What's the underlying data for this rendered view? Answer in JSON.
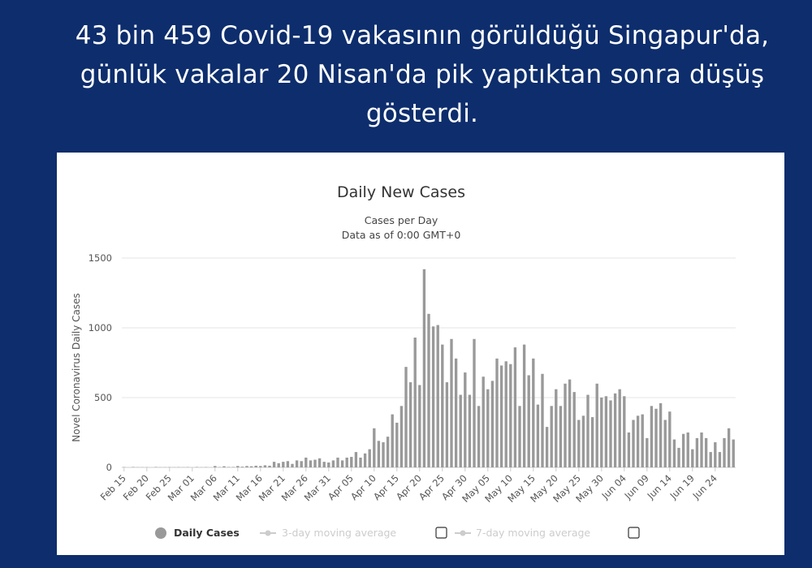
{
  "headline": {
    "line1": "43 bin 459 Covid-19 vakasının görüldüğü Singapur'da,",
    "line2": "günlük vakalar 20 Nisan'da pik yaptıktan sonra düşüş",
    "line3": "gösterdi."
  },
  "chart_data": {
    "type": "bar",
    "title": "Daily New Cases",
    "subtitle_1": "Cases per Day",
    "subtitle_2": "Data as of 0:00 GMT+0",
    "xlabel": "",
    "ylabel": "Novel Coronavirus Daily Cases",
    "ylim": [
      0,
      1500
    ],
    "yticks": [
      0,
      500,
      1000,
      1500
    ],
    "xtick_labels": [
      "Feb 15",
      "Feb 20",
      "Feb 25",
      "Mar 01",
      "Mar 06",
      "Mar 11",
      "Mar 16",
      "Mar 21",
      "Mar 26",
      "Mar 31",
      "Apr 05",
      "Apr 10",
      "Apr 15",
      "Apr 20",
      "Apr 25",
      "Apr 30",
      "May 05",
      "May 10",
      "May 15",
      "May 20",
      "May 25",
      "May 30",
      "Jun 04",
      "Jun 09",
      "Jun 14",
      "Jun 19",
      "Jun 24"
    ],
    "bar_color": "#999999",
    "legend": {
      "position": "bottom",
      "items": [
        {
          "label": "Daily Cases",
          "active": true,
          "color": "#999999"
        },
        {
          "label": "3-day moving average",
          "active": false,
          "color": "#cccccc"
        },
        {
          "label": "7-day moving average",
          "active": false,
          "color": "#cccccc"
        }
      ]
    },
    "grid": true,
    "series": [
      {
        "name": "Daily Cases",
        "values": [
          2,
          0,
          3,
          1,
          1,
          1,
          0,
          3,
          1,
          1,
          2,
          1,
          2,
          1,
          2,
          0,
          3,
          1,
          2,
          0,
          10,
          2,
          8,
          3,
          3,
          10,
          5,
          10,
          8,
          12,
          10,
          15,
          12,
          40,
          30,
          40,
          45,
          25,
          50,
          45,
          70,
          50,
          55,
          65,
          40,
          35,
          50,
          70,
          50,
          70,
          75,
          110,
          70,
          100,
          130,
          280,
          190,
          180,
          220,
          380,
          320,
          440,
          720,
          610,
          930,
          590,
          1420,
          1100,
          1010,
          1020,
          880,
          610,
          920,
          780,
          520,
          680,
          520,
          920,
          440,
          650,
          560,
          620,
          780,
          730,
          760,
          740,
          860,
          440,
          880,
          660,
          780,
          450,
          670,
          290,
          440,
          560,
          440,
          600,
          630,
          540,
          340,
          370,
          520,
          360,
          600,
          500,
          510,
          480,
          530,
          560,
          510,
          250,
          340,
          370,
          380,
          210,
          440,
          420,
          460,
          340,
          400,
          200,
          140,
          240,
          250,
          130,
          210,
          250,
          210,
          110,
          180,
          110,
          210,
          280,
          200
        ]
      },
      {
        "name": "3-day moving average",
        "values": []
      },
      {
        "name": "7-day moving average",
        "values": []
      }
    ]
  }
}
